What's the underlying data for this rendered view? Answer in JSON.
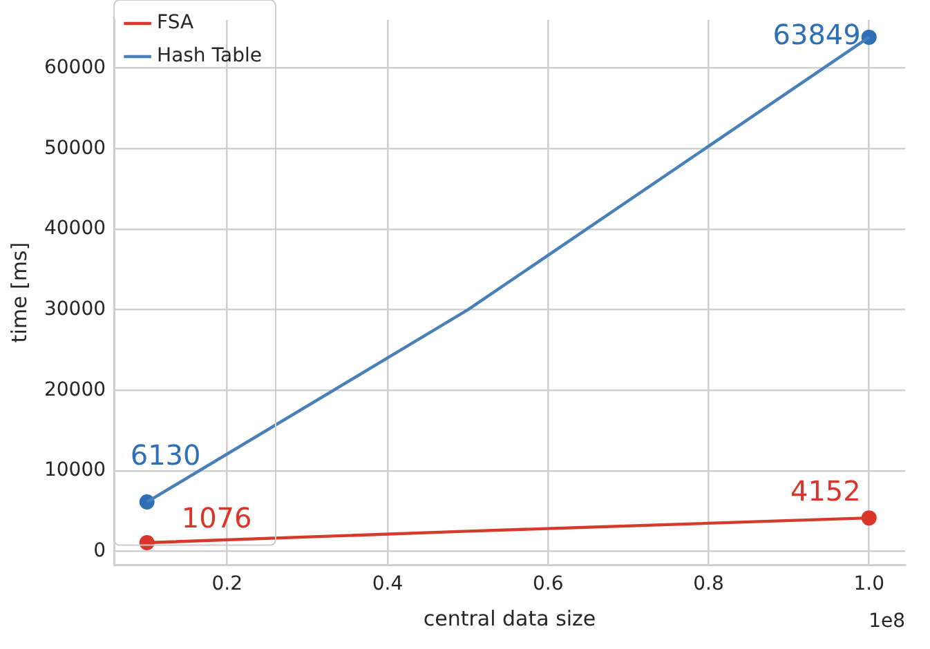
{
  "chart_data": {
    "type": "line",
    "xlabel": "central data size",
    "ylabel": "time [ms]",
    "annotations": [
      "1e8"
    ],
    "xlim": [
      0.059,
      1.045
    ],
    "xticks": [
      0.2,
      0.4,
      0.6,
      0.8,
      {
        "value": 1.0,
        "label": "1.0"
      }
    ],
    "ylim": [
      -1700,
      66000
    ],
    "yticks": [
      0,
      10000,
      20000,
      30000,
      40000,
      50000,
      60000
    ],
    "grid": true,
    "legend": "top left",
    "marker": "none",
    "line_style": "solid",
    "series": [
      {
        "name": "FSA",
        "color": "#d63a2a",
        "x": [
          0.1,
          0.5,
          1.0
        ],
        "values": [
          1076,
          2500,
          4152
        ]
      },
      {
        "name": "Hash Table",
        "color": "#4a80b8",
        "x": [
          0.1,
          0.5,
          1.0
        ],
        "values": [
          6130,
          30000,
          63849
        ]
      },
      {
        "type": "scatter",
        "marker": "circle",
        "color": "#d9352a",
        "x": [
          0.1,
          1.0
        ],
        "values": [
          1076,
          4152
        ],
        "value_labels": [
          "1076",
          "4152"
        ]
      },
      {
        "type": "scatter",
        "marker": "circle",
        "color": "#2f6fb5",
        "x": [
          0.1,
          1.0
        ],
        "values": [
          6130,
          63849
        ],
        "value_labels": [
          "6130",
          "63849"
        ]
      }
    ]
  }
}
